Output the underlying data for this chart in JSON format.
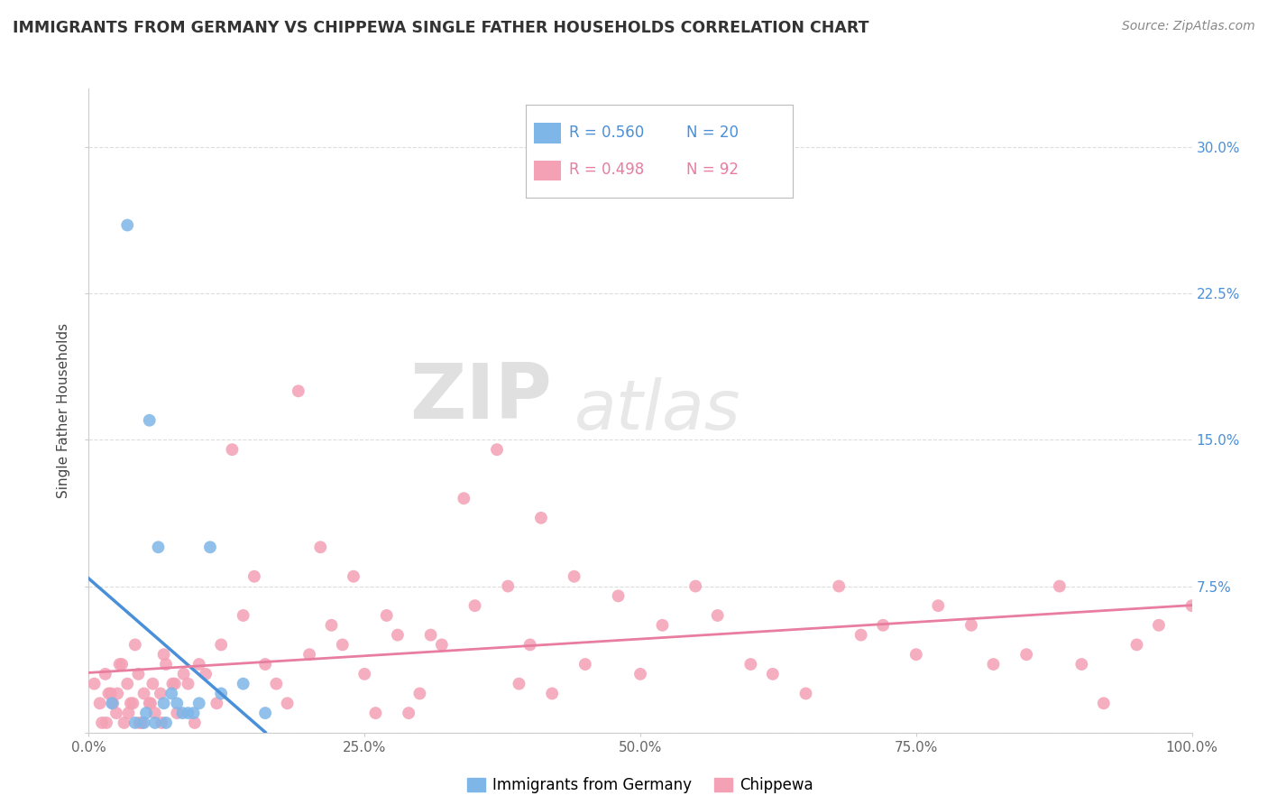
{
  "title": "IMMIGRANTS FROM GERMANY VS CHIPPEWA SINGLE FATHER HOUSEHOLDS CORRELATION CHART",
  "source": "Source: ZipAtlas.com",
  "ylabel": "Single Father Households",
  "xlim": [
    0,
    100
  ],
  "ylim": [
    0,
    33
  ],
  "yticks": [
    0,
    7.5,
    15.0,
    22.5,
    30.0
  ],
  "xticks": [
    0,
    25,
    50,
    75,
    100
  ],
  "xtick_labels": [
    "0.0%",
    "25.0%",
    "50.0%",
    "75.0%",
    "100.0%"
  ],
  "ytick_labels": [
    "",
    "7.5%",
    "15.0%",
    "22.5%",
    "30.0%"
  ],
  "legend_labels": [
    "Immigrants from Germany",
    "Chippewa"
  ],
  "R_germany": 0.56,
  "N_germany": 20,
  "R_chippewa": 0.498,
  "N_chippewa": 92,
  "color_germany": "#7EB6E8",
  "color_chippewa": "#F4A0B5",
  "line_color_germany": "#4A90D9",
  "line_color_chippewa": "#E87DA0",
  "background_color": "#FFFFFF",
  "grid_color": "#DDDDDD",
  "germany_x": [
    3.5,
    5.5,
    6.3,
    7.5,
    8.0,
    8.5,
    9.0,
    9.5,
    10.0,
    11.0,
    12.0,
    14.0,
    16.0,
    5.2,
    6.8,
    2.1,
    4.2,
    5.0,
    6.0,
    7.0
  ],
  "germany_y": [
    26.0,
    16.0,
    9.5,
    2.0,
    1.5,
    1.0,
    1.0,
    1.0,
    1.5,
    9.5,
    2.0,
    2.5,
    1.0,
    1.0,
    1.5,
    1.5,
    0.5,
    0.5,
    0.5,
    0.5
  ],
  "chippewa_x": [
    0.5,
    1.0,
    1.2,
    1.5,
    1.6,
    1.8,
    2.0,
    2.2,
    2.5,
    2.6,
    2.8,
    3.0,
    3.2,
    3.5,
    3.6,
    3.8,
    4.0,
    4.2,
    4.5,
    4.6,
    4.8,
    5.0,
    5.5,
    5.6,
    5.8,
    6.0,
    6.5,
    6.6,
    6.8,
    7.0,
    7.6,
    7.8,
    8.0,
    8.6,
    9.0,
    9.6,
    10.0,
    10.6,
    11.6,
    12.0,
    13.0,
    14.0,
    15.0,
    16.0,
    17.0,
    18.0,
    19.0,
    20.0,
    21.0,
    22.0,
    23.0,
    24.0,
    25.0,
    26.0,
    27.0,
    28.0,
    29.0,
    30.0,
    31.0,
    32.0,
    34.0,
    35.0,
    37.0,
    38.0,
    39.0,
    40.0,
    41.0,
    42.0,
    44.0,
    45.0,
    48.0,
    50.0,
    52.0,
    55.0,
    57.0,
    60.0,
    62.0,
    65.0,
    68.0,
    70.0,
    72.0,
    75.0,
    77.0,
    80.0,
    82.0,
    85.0,
    88.0,
    90.0,
    92.0,
    95.0,
    97.0,
    100.0
  ],
  "chippewa_y": [
    2.5,
    1.5,
    0.5,
    3.0,
    0.5,
    2.0,
    2.0,
    1.5,
    1.0,
    2.0,
    3.5,
    3.5,
    0.5,
    2.5,
    1.0,
    1.5,
    1.5,
    4.5,
    3.0,
    0.5,
    0.5,
    2.0,
    1.5,
    1.5,
    2.5,
    1.0,
    2.0,
    0.5,
    4.0,
    3.5,
    2.5,
    2.5,
    1.0,
    3.0,
    2.5,
    0.5,
    3.5,
    3.0,
    1.5,
    4.5,
    14.5,
    6.0,
    8.0,
    3.5,
    2.5,
    1.5,
    17.5,
    4.0,
    9.5,
    5.5,
    4.5,
    8.0,
    3.0,
    1.0,
    6.0,
    5.0,
    1.0,
    2.0,
    5.0,
    4.5,
    12.0,
    6.5,
    14.5,
    7.5,
    2.5,
    4.5,
    11.0,
    2.0,
    8.0,
    3.5,
    7.0,
    3.0,
    5.5,
    7.5,
    6.0,
    3.5,
    3.0,
    2.0,
    7.5,
    5.0,
    5.5,
    4.0,
    6.5,
    5.5,
    3.5,
    4.0,
    7.5,
    3.5,
    1.5,
    4.5,
    5.5,
    6.5
  ]
}
